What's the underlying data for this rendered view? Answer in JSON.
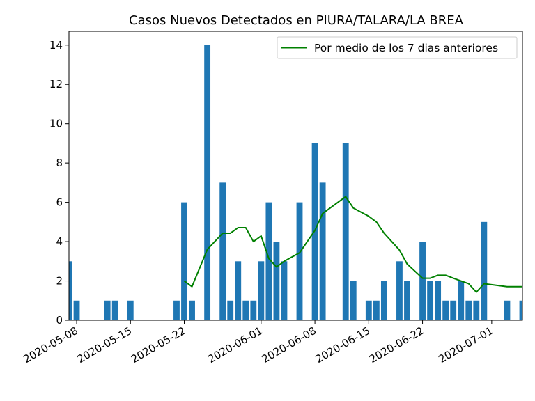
{
  "chart_data": {
    "type": "bar",
    "title": "Casos Nuevos Detectados en PIURA/TALARA/LA BREA",
    "xlabel": "",
    "ylabel": "",
    "ylim": [
      0,
      14.7
    ],
    "xlim": [
      "2020-05-07",
      "2020-07-05"
    ],
    "yticks": [
      0,
      2,
      4,
      6,
      8,
      10,
      12,
      14
    ],
    "xticks": [
      "2020-05-08",
      "2020-05-15",
      "2020-05-22",
      "2020-06-01",
      "2020-06-08",
      "2020-06-15",
      "2020-06-22",
      "2020-07-01"
    ],
    "bar_color": "#1f77b4",
    "line_color": "#008000",
    "legend": {
      "placement": "top-right",
      "entries": [
        "Por medio de los 7 dias anteriores"
      ]
    },
    "grid": false,
    "bars": [
      {
        "x": "2020-05-07",
        "y": 3
      },
      {
        "x": "2020-05-08",
        "y": 1
      },
      {
        "x": "2020-05-12",
        "y": 1
      },
      {
        "x": "2020-05-13",
        "y": 1
      },
      {
        "x": "2020-05-15",
        "y": 1
      },
      {
        "x": "2020-05-21",
        "y": 1
      },
      {
        "x": "2020-05-22",
        "y": 6
      },
      {
        "x": "2020-05-23",
        "y": 1
      },
      {
        "x": "2020-05-25",
        "y": 14
      },
      {
        "x": "2020-05-27",
        "y": 7
      },
      {
        "x": "2020-05-28",
        "y": 1
      },
      {
        "x": "2020-05-29",
        "y": 3
      },
      {
        "x": "2020-05-30",
        "y": 1
      },
      {
        "x": "2020-05-31",
        "y": 1
      },
      {
        "x": "2020-06-01",
        "y": 3
      },
      {
        "x": "2020-06-02",
        "y": 6
      },
      {
        "x": "2020-06-03",
        "y": 4
      },
      {
        "x": "2020-06-04",
        "y": 3
      },
      {
        "x": "2020-06-06",
        "y": 6
      },
      {
        "x": "2020-06-08",
        "y": 9
      },
      {
        "x": "2020-06-09",
        "y": 7
      },
      {
        "x": "2020-06-12",
        "y": 9
      },
      {
        "x": "2020-06-13",
        "y": 2
      },
      {
        "x": "2020-06-15",
        "y": 1
      },
      {
        "x": "2020-06-16",
        "y": 1
      },
      {
        "x": "2020-06-17",
        "y": 2
      },
      {
        "x": "2020-06-19",
        "y": 3
      },
      {
        "x": "2020-06-20",
        "y": 2
      },
      {
        "x": "2020-06-22",
        "y": 4
      },
      {
        "x": "2020-06-23",
        "y": 2
      },
      {
        "x": "2020-06-24",
        "y": 2
      },
      {
        "x": "2020-06-25",
        "y": 1
      },
      {
        "x": "2020-06-26",
        "y": 1
      },
      {
        "x": "2020-06-27",
        "y": 2
      },
      {
        "x": "2020-06-28",
        "y": 1
      },
      {
        "x": "2020-06-29",
        "y": 1
      },
      {
        "x": "2020-06-30",
        "y": 5
      },
      {
        "x": "2020-07-03",
        "y": 1
      },
      {
        "x": "2020-07-05",
        "y": 1
      }
    ],
    "series": [
      {
        "name": "Por medio de los 7 dias anteriores",
        "points": [
          {
            "x": "2020-05-22",
            "y": 2.0
          },
          {
            "x": "2020-05-23",
            "y": 1.71
          },
          {
            "x": "2020-05-25",
            "y": 3.6
          },
          {
            "x": "2020-05-27",
            "y": 4.43
          },
          {
            "x": "2020-05-28",
            "y": 4.43
          },
          {
            "x": "2020-05-29",
            "y": 4.71
          },
          {
            "x": "2020-05-30",
            "y": 4.71
          },
          {
            "x": "2020-05-31",
            "y": 4.0
          },
          {
            "x": "2020-06-01",
            "y": 4.29
          },
          {
            "x": "2020-06-02",
            "y": 3.14
          },
          {
            "x": "2020-06-03",
            "y": 2.71
          },
          {
            "x": "2020-06-04",
            "y": 3.0
          },
          {
            "x": "2020-06-06",
            "y": 3.43
          },
          {
            "x": "2020-06-08",
            "y": 4.57
          },
          {
            "x": "2020-06-09",
            "y": 5.43
          },
          {
            "x": "2020-06-12",
            "y": 6.29
          },
          {
            "x": "2020-06-13",
            "y": 5.71
          },
          {
            "x": "2020-06-15",
            "y": 5.29
          },
          {
            "x": "2020-06-16",
            "y": 5.0
          },
          {
            "x": "2020-06-17",
            "y": 4.43
          },
          {
            "x": "2020-06-19",
            "y": 3.57
          },
          {
            "x": "2020-06-20",
            "y": 2.86
          },
          {
            "x": "2020-06-22",
            "y": 2.14
          },
          {
            "x": "2020-06-23",
            "y": 2.14
          },
          {
            "x": "2020-06-24",
            "y": 2.29
          },
          {
            "x": "2020-06-25",
            "y": 2.29
          },
          {
            "x": "2020-06-26",
            "y": 2.14
          },
          {
            "x": "2020-06-27",
            "y": 2.0
          },
          {
            "x": "2020-06-28",
            "y": 1.86
          },
          {
            "x": "2020-06-29",
            "y": 1.43
          },
          {
            "x": "2020-06-30",
            "y": 1.86
          },
          {
            "x": "2020-07-03",
            "y": 1.71
          },
          {
            "x": "2020-07-05",
            "y": 1.71
          }
        ]
      }
    ]
  }
}
